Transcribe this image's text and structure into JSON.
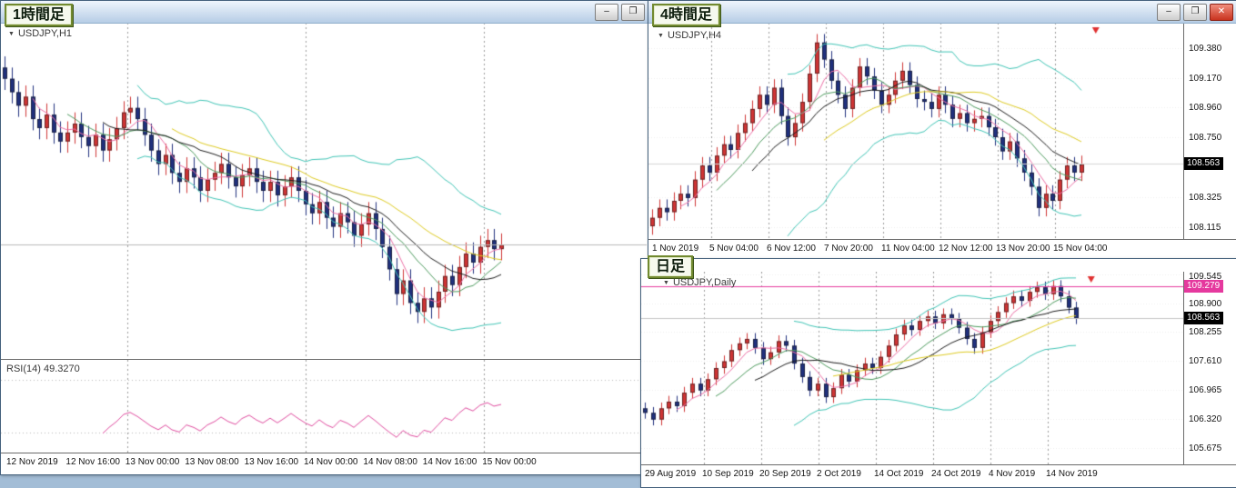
{
  "icons": {
    "minimize": "–",
    "maximize": "❐",
    "close": "✕",
    "symbol_dropdown": "▼",
    "chart_end_marker": "▼"
  },
  "colors": {
    "workspace_bg": "#a3bdd6",
    "up_candle": "#cf3434",
    "down_candle": "#20307d",
    "bollinger_band": "#3fc4b5",
    "ma_pink": "#ec6ea5",
    "ma_green": "#4c9a5d",
    "ma_black": "#1b1b1b",
    "ma_yellow": "#ddca20",
    "rsi_line": "#df4a9e",
    "current_price_line": "#b8b8b8",
    "price_label_bg": "#000000",
    "magenta_label_bg": "#e5399e",
    "end_marker_red": "#e03131"
  },
  "h1_window": {
    "tag": "1時間足",
    "symbol": "USDJPY,H1",
    "rsi_label": "RSI(14) 49.3270",
    "x_ticks": [
      "12 Nov 2019",
      "12 Nov 16:00",
      "13 Nov 00:00",
      "13 Nov 08:00",
      "13 Nov 16:00",
      "14 Nov 00:00",
      "14 Nov 08:00",
      "14 Nov 16:00",
      "15 Nov 00:00"
    ]
  },
  "h4_window": {
    "tag": "4時間足",
    "symbol": "USDJPY,H4",
    "price_label": "108.563",
    "y_ticks": [
      "109.380",
      "109.170",
      "108.960",
      "108.750",
      "108.325",
      "108.115"
    ],
    "x_ticks": [
      "1 Nov 2019",
      "5 Nov 04:00",
      "6 Nov 12:00",
      "7 Nov 20:00",
      "11 Nov 04:00",
      "12 Nov 12:00",
      "13 Nov 20:00",
      "15 Nov 04:00"
    ]
  },
  "daily_window": {
    "tag": "日足",
    "symbol": "USDJPY,Daily",
    "price_label_black": "108.563",
    "price_label_magenta": "109.279",
    "y_ticks": [
      "109.545",
      "108.900",
      "108.255",
      "107.610",
      "106.965",
      "106.320",
      "105.675"
    ],
    "x_ticks": [
      "29 Aug 2019",
      "10 Sep 2019",
      "20 Sep 2019",
      "2 Oct 2019",
      "14 Oct 2019",
      "24 Oct 2019",
      "4 Nov 2019",
      "14 Nov 2019"
    ]
  },
  "chart_data": [
    {
      "id": "h1-main",
      "type": "candlestick",
      "symbol": "USDJPY",
      "timeframe": "H1",
      "first_open": 109.35,
      "wick": 0.05,
      "ylim": [
        108.05,
        109.55
      ],
      "closes": [
        109.3,
        109.24,
        109.18,
        109.22,
        109.12,
        109.08,
        109.14,
        109.06,
        109.02,
        109.06,
        109.1,
        109.04,
        109.0,
        109.05,
        108.98,
        109.03,
        109.08,
        109.15,
        109.17,
        109.12,
        109.05,
        108.98,
        108.92,
        108.96,
        108.88,
        108.84,
        108.9,
        108.86,
        108.8,
        108.85,
        108.88,
        108.92,
        108.86,
        108.82,
        108.87,
        108.9,
        108.84,
        108.8,
        108.84,
        108.78,
        108.82,
        108.86,
        108.8,
        108.74,
        108.7,
        108.75,
        108.68,
        108.64,
        108.7,
        108.66,
        108.6,
        108.65,
        108.7,
        108.63,
        108.55,
        108.45,
        108.34,
        108.4,
        108.3,
        108.26,
        108.32,
        108.28,
        108.35,
        108.42,
        108.38,
        108.46,
        108.52,
        108.48,
        108.55,
        108.58,
        108.54,
        108.56
      ],
      "overlays": {
        "bollinger": {
          "period": 20,
          "k": 2
        },
        "moving_averages": [
          5,
          10,
          15,
          25
        ]
      },
      "hlines": [
        {
          "value": 108.56,
          "color": "#b8b8b8"
        }
      ]
    },
    {
      "id": "h1-rsi",
      "type": "line",
      "indicator": "RSI",
      "period": 14,
      "current_value": 49.327,
      "levels": [
        30,
        70
      ],
      "ylim": [
        15,
        85
      ],
      "source_id": "h1-main"
    },
    {
      "id": "h4-main",
      "type": "candlestick",
      "symbol": "USDJPY",
      "timeframe": "H4",
      "first_open": 108.12,
      "wick": 0.06,
      "ylim": [
        108.03,
        109.56
      ],
      "closes": [
        108.18,
        108.25,
        108.22,
        108.3,
        108.35,
        108.32,
        108.45,
        108.55,
        108.5,
        108.62,
        108.7,
        108.66,
        108.78,
        108.85,
        108.95,
        109.05,
        108.98,
        109.1,
        108.9,
        108.75,
        108.85,
        109.0,
        109.2,
        109.42,
        109.3,
        109.15,
        109.05,
        108.95,
        109.1,
        109.25,
        109.18,
        109.08,
        108.98,
        109.05,
        109.15,
        109.22,
        109.12,
        109.02,
        109.0,
        108.95,
        109.05,
        108.98,
        108.88,
        108.92,
        108.85,
        108.88,
        108.9,
        108.82,
        108.75,
        108.65,
        108.72,
        108.6,
        108.5,
        108.4,
        108.25,
        108.35,
        108.3,
        108.45,
        108.55,
        108.5,
        108.56
      ],
      "overlays": {
        "bollinger": {
          "period": 20,
          "k": 2
        },
        "moving_averages": [
          5,
          10,
          15,
          25
        ]
      },
      "hlines": [
        {
          "value": 108.563,
          "color": "#d6d6d6"
        }
      ]
    },
    {
      "id": "daily-main",
      "type": "candlestick",
      "symbol": "USDJPY",
      "timeframe": "Daily",
      "first_open": 106.55,
      "wick": 0.13,
      "ylim": [
        105.3,
        109.6
      ],
      "closes": [
        106.45,
        106.3,
        106.55,
        106.7,
        106.6,
        106.9,
        107.1,
        106.95,
        107.2,
        107.45,
        107.6,
        107.85,
        108.0,
        108.1,
        107.9,
        107.65,
        107.8,
        108.05,
        107.95,
        107.55,
        107.25,
        106.95,
        107.1,
        106.8,
        107.0,
        107.3,
        107.15,
        107.4,
        107.55,
        107.45,
        107.7,
        107.95,
        108.2,
        108.4,
        108.3,
        108.5,
        108.6,
        108.45,
        108.65,
        108.55,
        108.35,
        108.1,
        107.9,
        108.25,
        108.5,
        108.7,
        108.9,
        109.05,
        108.95,
        109.15,
        109.25,
        109.1,
        109.28,
        109.05,
        108.8,
        108.56
      ],
      "overlays": {
        "bollinger": {
          "period": 20,
          "k": 2
        },
        "moving_averages": [
          5,
          10,
          15,
          25
        ]
      },
      "hlines": [
        {
          "value": 109.279,
          "color": "#e5399e"
        },
        {
          "value": 108.563,
          "color": "#c4c4c4"
        }
      ]
    }
  ]
}
